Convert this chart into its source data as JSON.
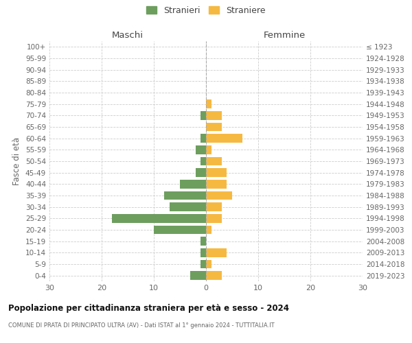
{
  "age_groups": [
    "0-4",
    "5-9",
    "10-14",
    "15-19",
    "20-24",
    "25-29",
    "30-34",
    "35-39",
    "40-44",
    "45-49",
    "50-54",
    "55-59",
    "60-64",
    "65-69",
    "70-74",
    "75-79",
    "80-84",
    "85-89",
    "90-94",
    "95-99",
    "100+"
  ],
  "birth_years": [
    "2019-2023",
    "2014-2018",
    "2009-2013",
    "2004-2008",
    "1999-2003",
    "1994-1998",
    "1989-1993",
    "1984-1988",
    "1979-1983",
    "1974-1978",
    "1969-1973",
    "1964-1968",
    "1959-1963",
    "1954-1958",
    "1949-1953",
    "1944-1948",
    "1939-1943",
    "1934-1938",
    "1929-1933",
    "1924-1928",
    "≤ 1923"
  ],
  "maschi": [
    3,
    1,
    1,
    1,
    10,
    18,
    7,
    8,
    5,
    2,
    1,
    2,
    1,
    0,
    1,
    0,
    0,
    0,
    0,
    0,
    0
  ],
  "femmine": [
    3,
    1,
    4,
    0,
    1,
    3,
    3,
    5,
    4,
    4,
    3,
    1,
    7,
    3,
    3,
    1,
    0,
    0,
    0,
    0,
    0
  ],
  "color_maschi": "#6d9e5e",
  "color_femmine": "#f5b942",
  "title": "Popolazione per cittadinanza straniera per età e sesso - 2024",
  "subtitle": "COMUNE DI PRATA DI PRINCIPATO ULTRA (AV) - Dati ISTAT al 1° gennaio 2024 - TUTTITALIA.IT",
  "xlabel_left": "Maschi",
  "xlabel_right": "Femmine",
  "ylabel_left": "Fasce di età",
  "legend_stranieri": "Stranieri",
  "legend_straniere": "Straniere",
  "xlim": 30,
  "background_color": "#ffffff",
  "grid_color": "#cccccc"
}
